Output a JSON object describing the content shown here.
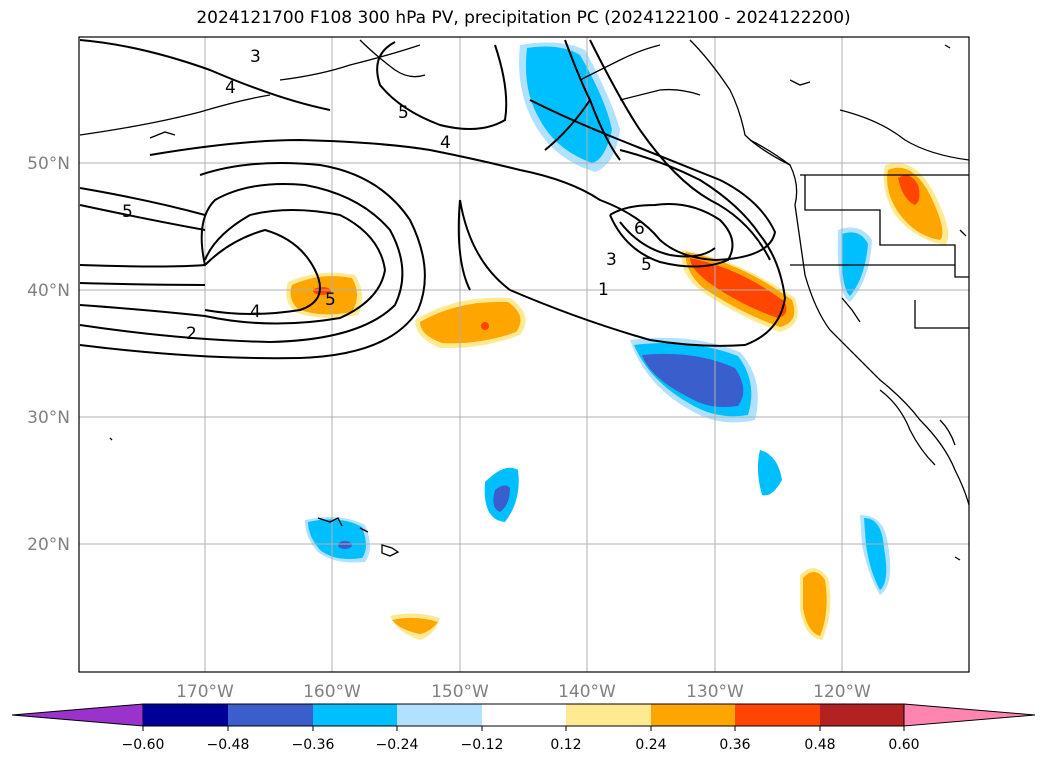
{
  "title": "2024121700 F108 300 hPa PV, precipitation PC (2024122100 - 2024122200)",
  "lat_labels": [
    "50°N",
    "40°N",
    "30°N",
    "20°N"
  ],
  "lon_labels": [
    "170°W",
    "160°W",
    "150°W",
    "140°W",
    "130°W",
    "120°W"
  ],
  "contour_labels": [
    "3",
    "4",
    "5",
    "4",
    "5",
    "4",
    "2",
    "5",
    "6",
    "5",
    "3",
    "1"
  ],
  "colorbar": {
    "tick_labels": [
      "−0.60",
      "−0.48",
      "−0.36",
      "−0.24",
      "−0.12",
      "0.12",
      "0.24",
      "0.36",
      "0.48",
      "0.60"
    ],
    "colors": [
      "#9933cc",
      "#000099",
      "#3a5fcd",
      "#00bfff",
      "#b0e2ff",
      "#ffffff",
      "#ffe991",
      "#ffa500",
      "#ff4500",
      "#b22222",
      "#ff85b0"
    ]
  },
  "colors": {
    "neg_strong": "#3a5fcd",
    "neg_mid": "#00bfff",
    "neg_weak": "#b0e2ff",
    "pos_weak": "#ffe991",
    "pos_mid": "#ffa500",
    "pos_strong": "#ff4500"
  }
}
